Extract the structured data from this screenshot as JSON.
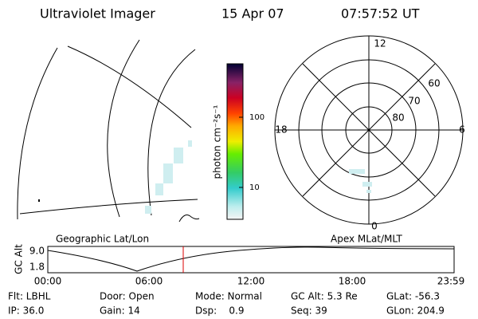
{
  "header": {
    "instrument": "Ultraviolet Imager",
    "date": "15 Apr 07",
    "time": "07:57:52 UT"
  },
  "colorbar": {
    "label": "photon cm⁻²s⁻¹",
    "ticks": [
      "100",
      "10"
    ]
  },
  "polar": {
    "mlt_labels": [
      "12",
      "18",
      "6",
      "0"
    ],
    "mlat_labels": [
      "60",
      "70",
      "80"
    ]
  },
  "panels": {
    "left": "Geographic Lat/Lon",
    "right": "Apex MLat/MLT"
  },
  "altitude_plot": {
    "ylabel": "GC Alt",
    "yticks": [
      "9.0",
      "1.8"
    ],
    "xticks": [
      "00:00",
      "06:00",
      "12:00",
      "18:00",
      "23:59"
    ]
  },
  "info": {
    "row1": [
      "Flt: LBHL",
      "Door: Open",
      "Mode: Normal",
      "GC Alt: 5.3 Re",
      "GLat: -56.3"
    ],
    "row2": [
      "IP: 36.0",
      "Gain: 14",
      "Dsp:    0.9",
      "Seq: 39",
      "GLon: 204.9"
    ]
  }
}
